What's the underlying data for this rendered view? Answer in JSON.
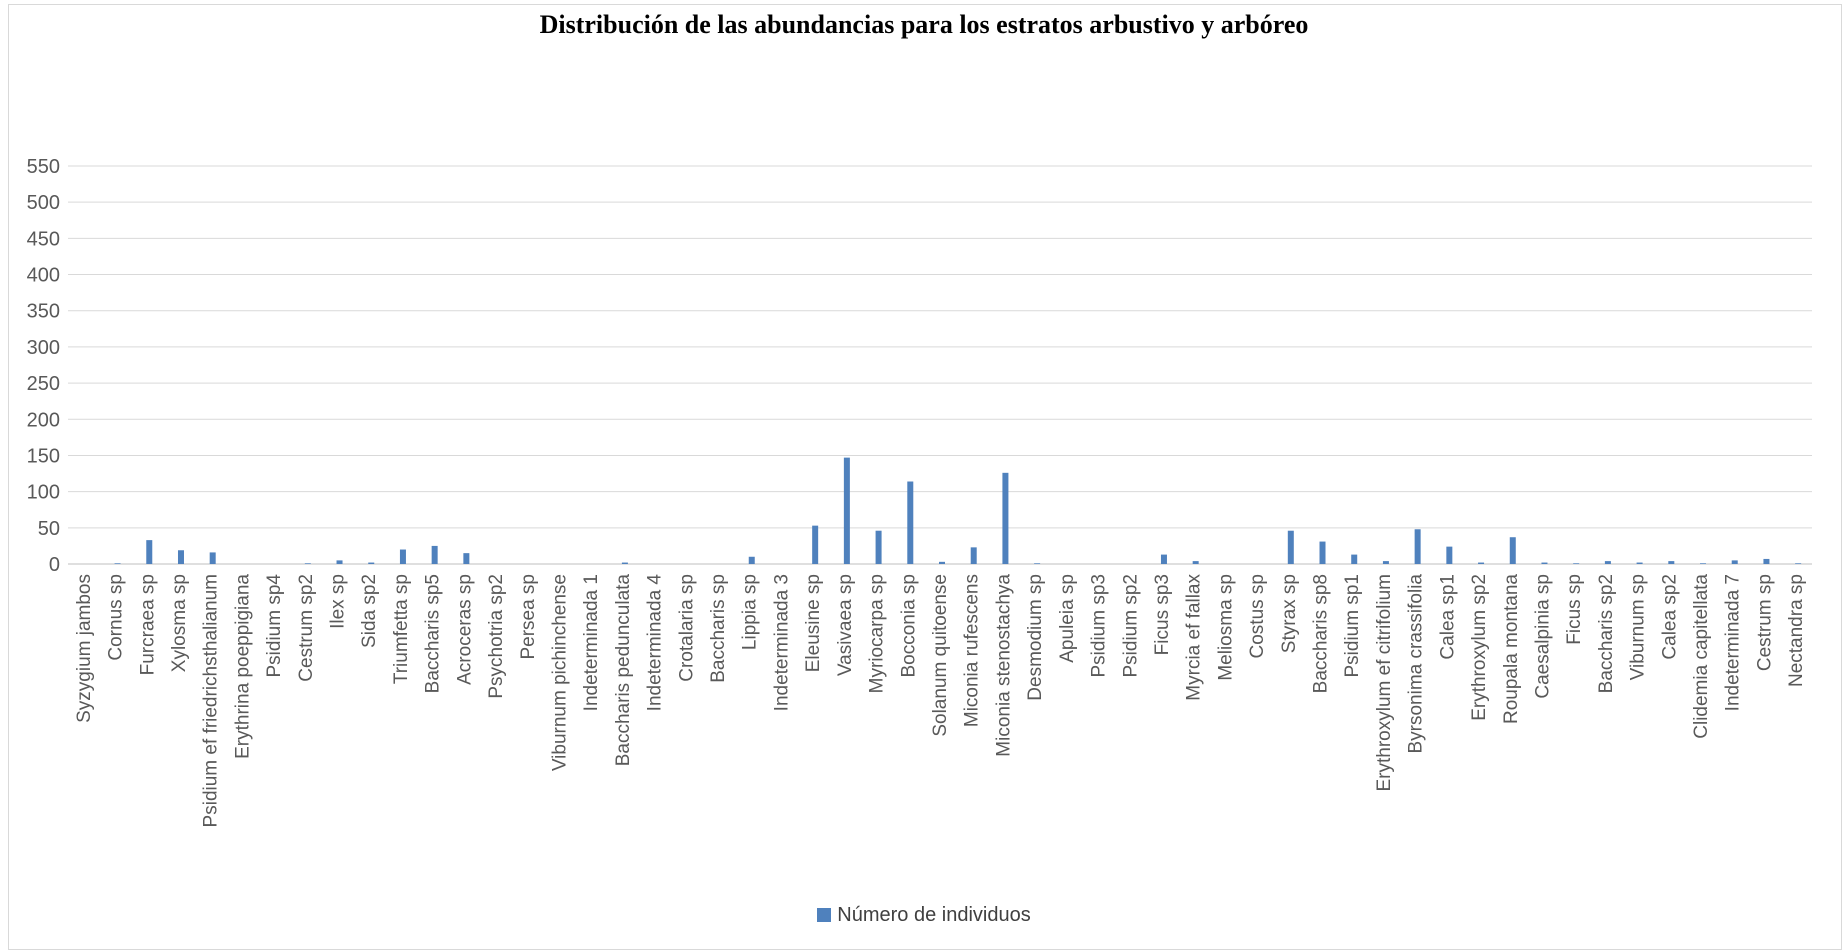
{
  "chart_data": {
    "type": "bar",
    "title": "Distribución de las abundancias para los estratos arbustivo y arbóreo",
    "ylim": [
      0,
      550
    ],
    "yticks": [
      0,
      50,
      100,
      150,
      200,
      250,
      300,
      350,
      400,
      450,
      500,
      550
    ],
    "grid": true,
    "legend_position": "bottom",
    "color": "#4f81bd",
    "categories": [
      "Syzygium jambos",
      "Cornus sp",
      "Furcraea sp",
      "Xylosma sp",
      "Psidium ef friedrichsthalianum",
      "Erythrina poeppigiana",
      "Psidium sp4",
      "Cestrum sp2",
      "Ilex sp",
      "Sida sp2",
      "Triumfetta sp",
      "Baccharis sp5",
      "Acroceras sp",
      "Psychotria sp2",
      "Persea sp",
      "Viburnum pichinchense",
      "Indeterminada 1",
      "Baccharis pedunculata",
      "Indeterminada 4",
      "Crotalaria sp",
      "Baccharis sp",
      "Lippia sp",
      "Indeterminada 3",
      "Eleusine sp",
      "Vasivaea sp",
      "Myriocarpa sp",
      "Bocconia sp",
      "Solanum quitoense",
      "Miconia rufescens",
      "Miconia stenostachya",
      "Desmodium sp",
      "Apuleia sp",
      "Psidium sp3",
      "Psidium sp2",
      "Ficus sp3",
      "Myrcia ef fallax",
      "Meliosma sp",
      "Costus sp",
      "Styrax sp",
      "Baccharis sp8",
      "Psidium sp1",
      "Erythroxylum ef citrifolium",
      "Byrsonima crassifolia",
      "Calea sp1",
      "Erythroxylum sp2",
      "Roupala montana",
      "Caesalpinia sp",
      "Ficus sp",
      "Baccharis sp2",
      "Viburnum sp",
      "Calea sp2",
      "Clidemia capitellata",
      "Indeterminada 7",
      "Cestrum sp",
      "Nectandra sp"
    ],
    "series": [
      {
        "name": "Número de individuos",
        "values": [
          0,
          1,
          33,
          19,
          16,
          0,
          0,
          1,
          5,
          2,
          20,
          25,
          15,
          0,
          0,
          0,
          0,
          2,
          0,
          0,
          0,
          10,
          0,
          53,
          147,
          46,
          114,
          3,
          23,
          126,
          1,
          0,
          0,
          0,
          13,
          4,
          0,
          0,
          46,
          31,
          13,
          4,
          48,
          24,
          2,
          37,
          2,
          1,
          4,
          2,
          4,
          1,
          5,
          7,
          1
        ]
      }
    ]
  }
}
